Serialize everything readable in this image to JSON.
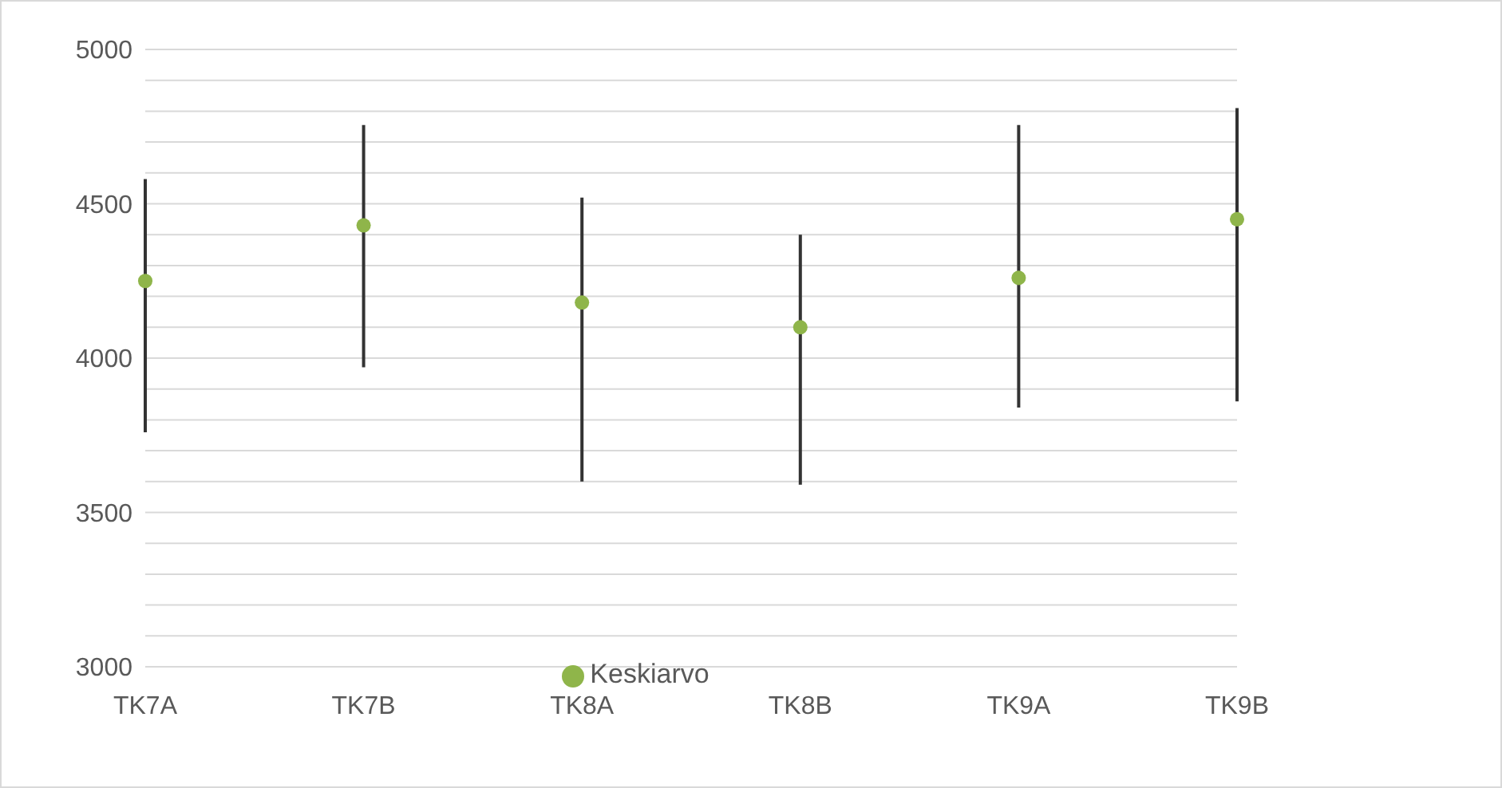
{
  "chart_data": {
    "type": "scatter",
    "categories": [
      "TK7A",
      "TK7B",
      "TK8A",
      "TK8B",
      "TK9A",
      "TK9B"
    ],
    "series": [
      {
        "name": "Keskiarvo",
        "color": "#8fb54a",
        "values": [
          4250,
          4430,
          4180,
          4100,
          4260,
          4450
        ],
        "errors": [
          [
            3760,
            4580
          ],
          [
            3970,
            4755
          ],
          [
            3600,
            4520
          ],
          [
            3590,
            4400
          ],
          [
            3840,
            4755
          ],
          [
            3860,
            4810
          ]
        ]
      }
    ],
    "ylim": [
      3000,
      5000
    ],
    "yticks": [
      3000,
      {
        "value": 3100,
        "label": null
      },
      {
        "value": 3200,
        "label": null
      },
      {
        "value": 3300,
        "label": null
      },
      {
        "value": 3400,
        "label": null
      },
      3500,
      {
        "value": 3600,
        "label": null
      },
      {
        "value": 3700,
        "label": null
      },
      {
        "value": 3800,
        "label": null
      },
      {
        "value": 3900,
        "label": null
      },
      4000,
      {
        "value": 4100,
        "label": null
      },
      {
        "value": 4200,
        "label": null
      },
      {
        "value": 4300,
        "label": null
      },
      {
        "value": 4400,
        "label": null
      },
      4500,
      {
        "value": 4600,
        "label": null
      },
      {
        "value": 4700,
        "label": null
      },
      {
        "value": 4800,
        "label": null
      },
      {
        "value": 4900,
        "label": null
      },
      5000
    ],
    "grid": "y",
    "legend": "bottom",
    "marker": "circle"
  }
}
